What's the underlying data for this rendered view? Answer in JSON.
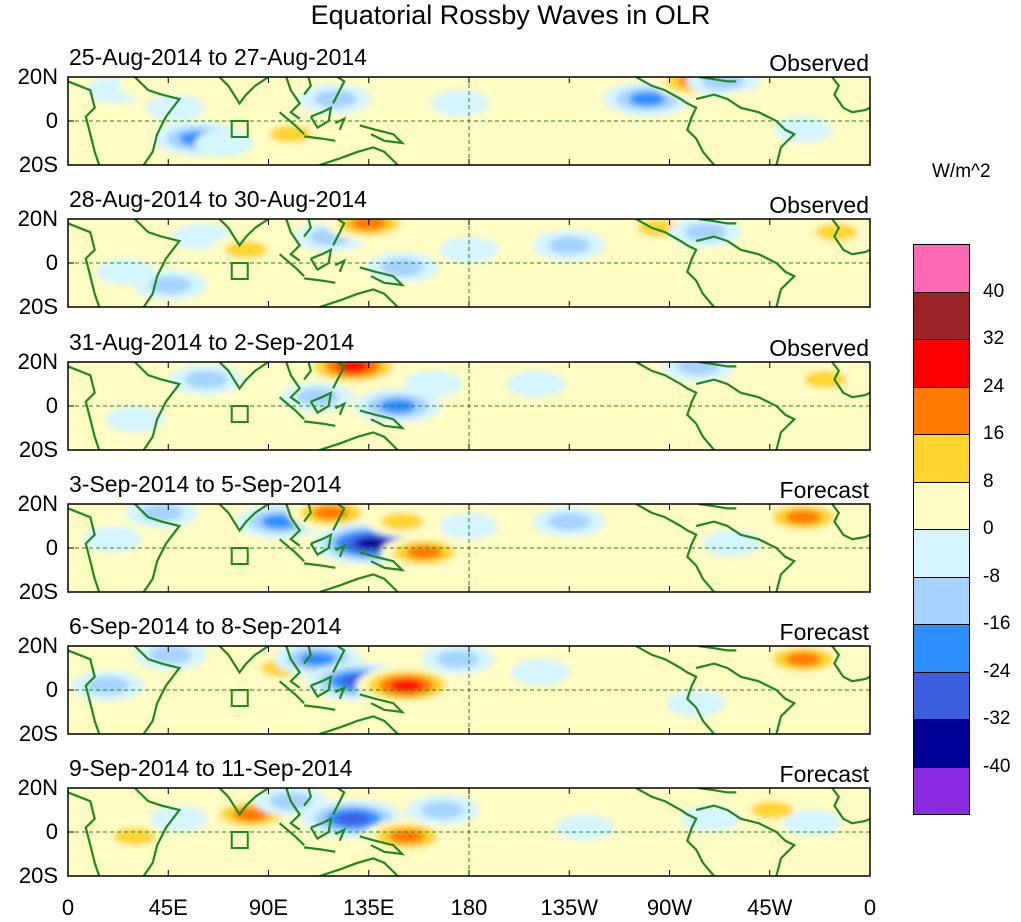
{
  "chart_data": {
    "type": "heatmap",
    "title": "Equatorial Rossby Waves in OLR",
    "xlabel": "",
    "ylabel": "",
    "x_ticks": [
      {
        "lon": 0,
        "label": "0"
      },
      {
        "lon": 45,
        "label": "45E"
      },
      {
        "lon": 90,
        "label": "90E"
      },
      {
        "lon": 135,
        "label": "135E"
      },
      {
        "lon": 180,
        "label": "180"
      },
      {
        "lon": 225,
        "label": "135W"
      },
      {
        "lon": 270,
        "label": "90W"
      },
      {
        "lon": 315,
        "label": "45W"
      },
      {
        "lon": 360,
        "label": "0"
      }
    ],
    "y_ticks": [
      {
        "lat": 20,
        "label": "20N"
      },
      {
        "lat": 0,
        "label": "0"
      },
      {
        "lat": -20,
        "label": "20S"
      }
    ],
    "xlim": [
      0,
      360
    ],
    "ylim": [
      -20,
      20
    ],
    "colorbar": {
      "units": "W/m^2",
      "levels": [
        40,
        32,
        24,
        16,
        8,
        0,
        -8,
        -16,
        -24,
        -32,
        -40
      ],
      "colors": [
        "#ff69b4",
        "#9b2226",
        "#ff0000",
        "#ff7a00",
        "#ffd52e",
        "#fffcc4",
        "#d5f5ff",
        "#a6d3ff",
        "#2b8fff",
        "#3c5ee0",
        "#000096",
        "#8a2be2"
      ]
    },
    "panels": [
      {
        "period": "25-Aug-2014 to 27-Aug-2014",
        "kind": "Observed",
        "anomalies": [
          {
            "lon": 8,
            "lat": 2,
            "value": 8
          },
          {
            "lon": 22,
            "lat": 14,
            "value": -8
          },
          {
            "lon": 36,
            "lat": 16,
            "value": 8
          },
          {
            "lon": 48,
            "lat": 6,
            "value": -8
          },
          {
            "lon": 58,
            "lat": -8,
            "value": -24
          },
          {
            "lon": 70,
            "lat": -10,
            "value": -8
          },
          {
            "lon": 90,
            "lat": 10,
            "value": 8
          },
          {
            "lon": 100,
            "lat": -6,
            "value": 16
          },
          {
            "lon": 120,
            "lat": 10,
            "value": -16
          },
          {
            "lon": 150,
            "lat": 2,
            "value": 8
          },
          {
            "lon": 176,
            "lat": 8,
            "value": -8
          },
          {
            "lon": 207,
            "lat": 10,
            "value": 8
          },
          {
            "lon": 225,
            "lat": 2,
            "value": 8
          },
          {
            "lon": 260,
            "lat": 10,
            "value": -24
          },
          {
            "lon": 282,
            "lat": 18,
            "value": 24
          },
          {
            "lon": 294,
            "lat": 18,
            "value": -16
          },
          {
            "lon": 304,
            "lat": 8,
            "value": 8
          },
          {
            "lon": 330,
            "lat": -4,
            "value": -8
          },
          {
            "lon": 348,
            "lat": 14,
            "value": 8
          }
        ]
      },
      {
        "period": "28-Aug-2014 to 30-Aug-2014",
        "kind": "Observed",
        "anomalies": [
          {
            "lon": 12,
            "lat": 8,
            "value": 8
          },
          {
            "lon": 26,
            "lat": -4,
            "value": -8
          },
          {
            "lon": 46,
            "lat": -10,
            "value": -16
          },
          {
            "lon": 60,
            "lat": 12,
            "value": -8
          },
          {
            "lon": 80,
            "lat": 6,
            "value": 16
          },
          {
            "lon": 100,
            "lat": -2,
            "value": 8
          },
          {
            "lon": 118,
            "lat": 12,
            "value": -16
          },
          {
            "lon": 135,
            "lat": 18,
            "value": 24
          },
          {
            "lon": 150,
            "lat": -2,
            "value": -16
          },
          {
            "lon": 180,
            "lat": 6,
            "value": -8
          },
          {
            "lon": 225,
            "lat": 8,
            "value": -16
          },
          {
            "lon": 265,
            "lat": 16,
            "value": 16
          },
          {
            "lon": 286,
            "lat": 14,
            "value": -16
          },
          {
            "lon": 345,
            "lat": 14,
            "value": 16
          },
          {
            "lon": 196,
            "lat": -6,
            "value": 8
          }
        ]
      },
      {
        "period": "31-Aug-2014 to 2-Sep-2014",
        "kind": "Observed",
        "anomalies": [
          {
            "lon": 16,
            "lat": 10,
            "value": 8
          },
          {
            "lon": 30,
            "lat": -6,
            "value": -8
          },
          {
            "lon": 62,
            "lat": 12,
            "value": -16
          },
          {
            "lon": 80,
            "lat": 0,
            "value": 8
          },
          {
            "lon": 112,
            "lat": 4,
            "value": -16
          },
          {
            "lon": 128,
            "lat": 18,
            "value": 32
          },
          {
            "lon": 148,
            "lat": 0,
            "value": -24
          },
          {
            "lon": 164,
            "lat": 10,
            "value": -8
          },
          {
            "lon": 210,
            "lat": 10,
            "value": -8
          },
          {
            "lon": 240,
            "lat": 14,
            "value": 8
          },
          {
            "lon": 265,
            "lat": 18,
            "value": 8
          },
          {
            "lon": 283,
            "lat": 18,
            "value": -16
          },
          {
            "lon": 340,
            "lat": 12,
            "value": 16
          },
          {
            "lon": 300,
            "lat": -6,
            "value": 8
          }
        ]
      },
      {
        "period": "3-Sep-2014 to 5-Sep-2014",
        "kind": "Forecast",
        "anomalies": [
          {
            "lon": 20,
            "lat": 4,
            "value": -8
          },
          {
            "lon": 42,
            "lat": 16,
            "value": -16
          },
          {
            "lon": 70,
            "lat": 0,
            "value": 8
          },
          {
            "lon": 95,
            "lat": 12,
            "value": -24
          },
          {
            "lon": 118,
            "lat": 16,
            "value": 24
          },
          {
            "lon": 136,
            "lat": 2,
            "value": -40
          },
          {
            "lon": 160,
            "lat": -2,
            "value": 24
          },
          {
            "lon": 150,
            "lat": 12,
            "value": 16
          },
          {
            "lon": 180,
            "lat": 10,
            "value": -8
          },
          {
            "lon": 225,
            "lat": 12,
            "value": -16
          },
          {
            "lon": 252,
            "lat": 4,
            "value": 8
          },
          {
            "lon": 330,
            "lat": 14,
            "value": 24
          },
          {
            "lon": 298,
            "lat": 2,
            "value": -8
          }
        ]
      },
      {
        "period": "6-Sep-2014 to 8-Sep-2014",
        "kind": "Forecast",
        "anomalies": [
          {
            "lon": 18,
            "lat": 2,
            "value": -16
          },
          {
            "lon": 46,
            "lat": 16,
            "value": -16
          },
          {
            "lon": 72,
            "lat": 2,
            "value": 8
          },
          {
            "lon": 96,
            "lat": 10,
            "value": 16
          },
          {
            "lon": 112,
            "lat": 14,
            "value": -24
          },
          {
            "lon": 130,
            "lat": 4,
            "value": -32
          },
          {
            "lon": 152,
            "lat": 2,
            "value": 32
          },
          {
            "lon": 175,
            "lat": 14,
            "value": -16
          },
          {
            "lon": 212,
            "lat": 8,
            "value": -8
          },
          {
            "lon": 252,
            "lat": 14,
            "value": 8
          },
          {
            "lon": 330,
            "lat": 14,
            "value": 24
          },
          {
            "lon": 282,
            "lat": -6,
            "value": -8
          }
        ]
      },
      {
        "period": "9-Sep-2014 to 11-Sep-2014",
        "kind": "Forecast",
        "anomalies": [
          {
            "lon": 30,
            "lat": -2,
            "value": 16
          },
          {
            "lon": 50,
            "lat": 6,
            "value": -8
          },
          {
            "lon": 82,
            "lat": 8,
            "value": 24
          },
          {
            "lon": 100,
            "lat": 14,
            "value": -16
          },
          {
            "lon": 128,
            "lat": 6,
            "value": -32
          },
          {
            "lon": 152,
            "lat": -2,
            "value": 24
          },
          {
            "lon": 168,
            "lat": 10,
            "value": -16
          },
          {
            "lon": 210,
            "lat": 10,
            "value": 8
          },
          {
            "lon": 232,
            "lat": 2,
            "value": -8
          },
          {
            "lon": 288,
            "lat": 6,
            "value": -8
          },
          {
            "lon": 316,
            "lat": 10,
            "value": 16
          },
          {
            "lon": 334,
            "lat": 4,
            "value": -8
          }
        ]
      }
    ]
  }
}
